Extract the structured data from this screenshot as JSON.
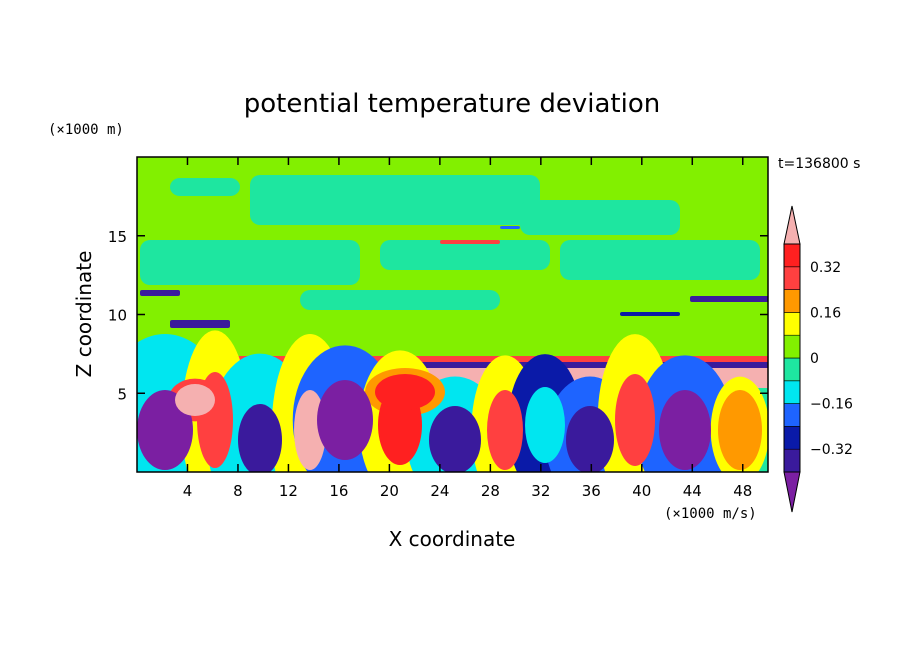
{
  "chart_data": {
    "type": "heatmap",
    "title": "potential temperature deviation",
    "xlabel": "X coordinate",
    "ylabel": "Z coordinate",
    "x_unit": "(×1000 m/s)",
    "y_unit": "(×1000 m)",
    "time_label": "t=136800 s",
    "xlim": [
      0,
      50
    ],
    "ylim": [
      0,
      20
    ],
    "x_ticks": [
      4,
      8,
      12,
      16,
      20,
      24,
      28,
      32,
      36,
      40,
      44,
      48
    ],
    "y_ticks": [
      5,
      10,
      15
    ],
    "colorbar": {
      "levels": [
        -0.4,
        -0.32,
        -0.24,
        -0.16,
        -0.08,
        0,
        0.08,
        0.16,
        0.24,
        0.32,
        0.4
      ],
      "tick_labels": [
        "0.32",
        "0.16",
        "0",
        "−0.16",
        "−0.32"
      ],
      "tick_values": [
        0.32,
        0.16,
        0,
        -0.16,
        -0.32
      ],
      "colors": [
        "#7b1fa2",
        "#3a1a9c",
        "#0a1aa8",
        "#1e64ff",
        "#00e6f0",
        "#1ee6a0",
        "#82f000",
        "#ffff00",
        "#ff9900",
        "#ff4040",
        "#ff2020",
        "#f5b0b0"
      ],
      "extend": "both"
    }
  }
}
